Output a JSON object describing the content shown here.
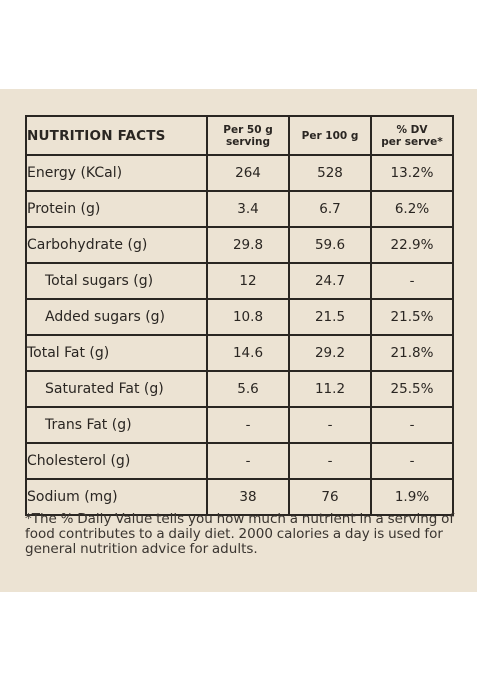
{
  "table": {
    "header": {
      "title": "NUTRITION FACTS",
      "col1_line1": "Per 50 g",
      "col1_line2": "serving",
      "col2": "Per 100 g",
      "col3_line1": "% DV",
      "col3_line2": "per serve*"
    },
    "rows": [
      {
        "label": "Energy (KCal)",
        "per50": "264",
        "per100": "528",
        "dv": "13.2%"
      },
      {
        "label": "Protein (g)",
        "per50": "3.4",
        "per100": "6.7",
        "dv": "6.2%"
      },
      {
        "label": "Carbohydrate (g)",
        "per50": "29.8",
        "per100": "59.6",
        "dv": "22.9%"
      },
      {
        "label": "Total sugars (g)",
        "per50": "12",
        "per100": "24.7",
        "dv": "-"
      },
      {
        "label": "Added sugars (g)",
        "per50": "10.8",
        "per100": "21.5",
        "dv": "21.5%"
      },
      {
        "label": "Total Fat (g)",
        "per50": "14.6",
        "per100": "29.2",
        "dv": "21.8%"
      },
      {
        "label": "Saturated Fat (g)",
        "per50": "5.6",
        "per100": "11.2",
        "dv": "25.5%"
      },
      {
        "label": "Trans Fat (g)",
        "per50": "-",
        "per100": "-",
        "dv": "-"
      },
      {
        "label": "Cholesterol (g)",
        "per50": "-",
        "per100": "-",
        "dv": "-"
      },
      {
        "label": "Sodium (mg)",
        "per50": "38",
        "per100": "76",
        "dv": "1.9%"
      }
    ]
  },
  "footnote": "*The % Daily Value tells you how much a nutrient in a serving of food contributes to a daily diet. 2000 calories a day is used for general nutrition advice for adults."
}
